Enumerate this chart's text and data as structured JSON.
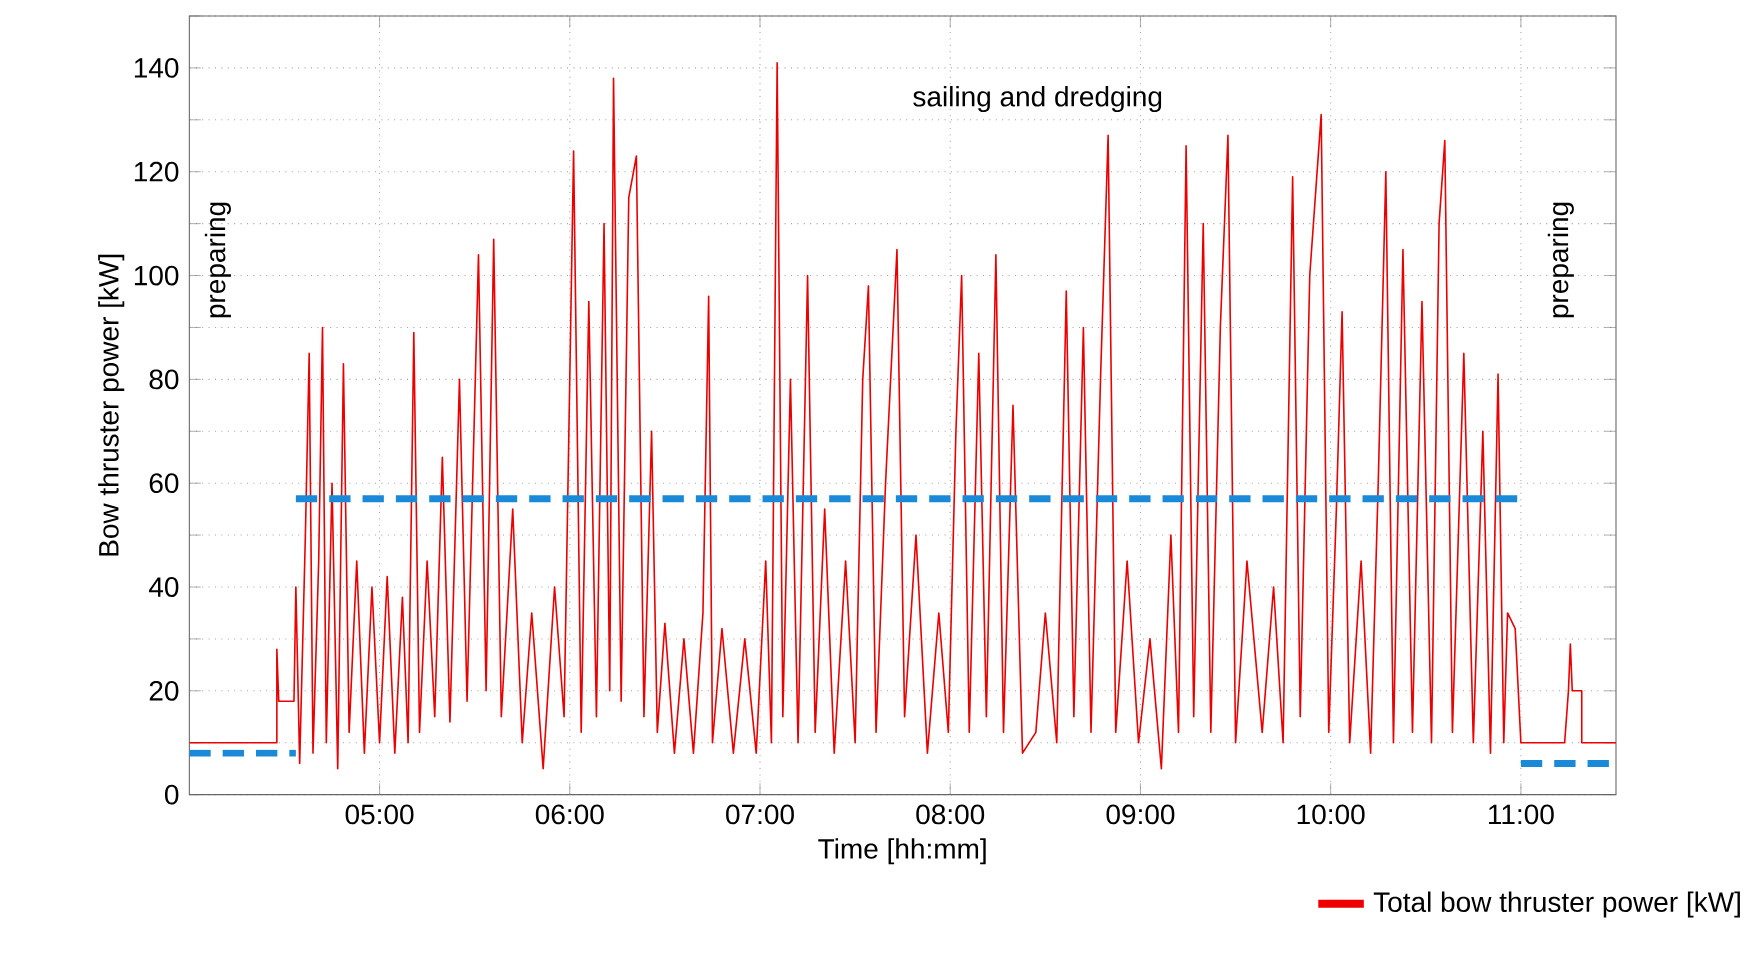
{
  "chart_data": {
    "type": "line",
    "xlabel": "Time [hh:mm]",
    "ylabel": "Bow thruster power [kW]",
    "xlim": [
      4.0,
      11.5
    ],
    "ylim": [
      0,
      150
    ],
    "xticks": [
      {
        "value": 5,
        "label": "05:00"
      },
      {
        "value": 6,
        "label": "06:00"
      },
      {
        "value": 7,
        "label": "07:00"
      },
      {
        "value": 8,
        "label": "08:00"
      },
      {
        "value": 9,
        "label": "09:00"
      },
      {
        "value": 10,
        "label": "10:00"
      },
      {
        "value": 11,
        "label": "11:00"
      }
    ],
    "yticks": [
      0,
      {
        "value": 10,
        "label": null
      },
      20,
      {
        "value": 30,
        "label": null
      },
      40,
      {
        "value": 50,
        "label": null
      },
      60,
      {
        "value": 70,
        "label": null
      },
      80,
      {
        "value": 90,
        "label": null
      },
      100,
      {
        "value": 110,
        "label": null
      },
      120,
      {
        "value": 130,
        "label": null
      },
      140,
      {
        "value": 150,
        "label": null
      }
    ],
    "grid": true,
    "legend": "bottom right",
    "annotations": [
      "preparing",
      "sailing and dredging",
      "preparing"
    ],
    "series": [
      {
        "name": "Total bow thruster power [kW]",
        "color": "#ee0000",
        "line_style": "solid",
        "x": [
          4.0,
          4.46,
          4.46,
          4.47,
          4.55,
          4.56,
          4.58,
          4.61,
          4.63,
          4.65,
          4.68,
          4.7,
          4.72,
          4.75,
          4.78,
          4.81,
          4.84,
          4.88,
          4.92,
          4.96,
          5.0,
          5.04,
          5.08,
          5.12,
          5.15,
          5.18,
          5.21,
          5.25,
          5.29,
          5.33,
          5.37,
          5.42,
          5.46,
          5.52,
          5.56,
          5.6,
          5.64,
          5.7,
          5.75,
          5.8,
          5.86,
          5.92,
          5.97,
          6.02,
          6.06,
          6.1,
          6.14,
          6.18,
          6.21,
          6.23,
          6.27,
          6.31,
          6.35,
          6.39,
          6.43,
          6.46,
          6.5,
          6.55,
          6.6,
          6.65,
          6.7,
          6.73,
          6.75,
          6.8,
          6.86,
          6.92,
          6.98,
          7.03,
          7.06,
          7.09,
          7.12,
          7.16,
          7.2,
          7.25,
          7.29,
          7.34,
          7.39,
          7.45,
          7.5,
          7.54,
          7.57,
          7.61,
          7.66,
          7.72,
          7.76,
          7.82,
          7.88,
          7.94,
          7.99,
          8.03,
          8.06,
          8.1,
          8.15,
          8.19,
          8.24,
          8.28,
          8.33,
          8.38,
          8.45,
          8.5,
          8.56,
          8.61,
          8.65,
          8.7,
          8.74,
          8.79,
          8.83,
          8.87,
          8.93,
          8.99,
          9.05,
          9.11,
          9.16,
          9.2,
          9.24,
          9.28,
          9.33,
          9.37,
          9.42,
          9.46,
          9.5,
          9.56,
          9.64,
          9.7,
          9.75,
          9.8,
          9.84,
          9.89,
          9.95,
          9.99,
          10.03,
          10.06,
          10.1,
          10.16,
          10.21,
          10.25,
          10.29,
          10.33,
          10.38,
          10.43,
          10.48,
          10.53,
          10.57,
          10.6,
          10.64,
          10.7,
          10.75,
          10.8,
          10.84,
          10.88,
          10.91,
          10.93,
          10.97,
          11.0,
          11.23,
          11.25,
          11.26,
          11.27,
          11.32,
          11.32,
          11.5
        ],
        "values": [
          10,
          10,
          28,
          18,
          18,
          40,
          6,
          50,
          85,
          8,
          45,
          90,
          10,
          60,
          5,
          83,
          12,
          45,
          8,
          40,
          10,
          42,
          8,
          38,
          10,
          89,
          12,
          45,
          15,
          65,
          14,
          80,
          18,
          104,
          20,
          107,
          15,
          55,
          10,
          35,
          5,
          40,
          15,
          124,
          12,
          95,
          15,
          110,
          20,
          138,
          18,
          115,
          123,
          15,
          70,
          12,
          33,
          8,
          30,
          8,
          35,
          96,
          10,
          32,
          8,
          30,
          8,
          45,
          10,
          141,
          15,
          80,
          10,
          100,
          12,
          55,
          8,
          45,
          10,
          80,
          98,
          12,
          60,
          105,
          15,
          50,
          8,
          35,
          12,
          70,
          100,
          12,
          85,
          15,
          104,
          12,
          75,
          8,
          12,
          35,
          10,
          97,
          15,
          90,
          12,
          80,
          127,
          12,
          45,
          10,
          30,
          5,
          50,
          12,
          125,
          15,
          110,
          12,
          90,
          127,
          10,
          45,
          12,
          40,
          10,
          119,
          15,
          100,
          131,
          12,
          55,
          93,
          10,
          45,
          8,
          60,
          120,
          10,
          105,
          12,
          95,
          10,
          110,
          126,
          12,
          85,
          10,
          70,
          8,
          81,
          10,
          35,
          32,
          10,
          10,
          20,
          29,
          20,
          20,
          10,
          10
        ]
      },
      {
        "color": "#1a8ad8",
        "line_style": "dashed",
        "x": [
          4.0,
          4.56
        ],
        "values": [
          8,
          8
        ]
      },
      {
        "color": "#1a8ad8",
        "line_style": "dashed",
        "x": [
          4.56,
          11.0
        ],
        "values": [
          57,
          57
        ]
      },
      {
        "color": "#1a8ad8",
        "line_style": "dashed",
        "x": [
          11.0,
          11.5
        ],
        "values": [
          6,
          6
        ]
      }
    ]
  }
}
